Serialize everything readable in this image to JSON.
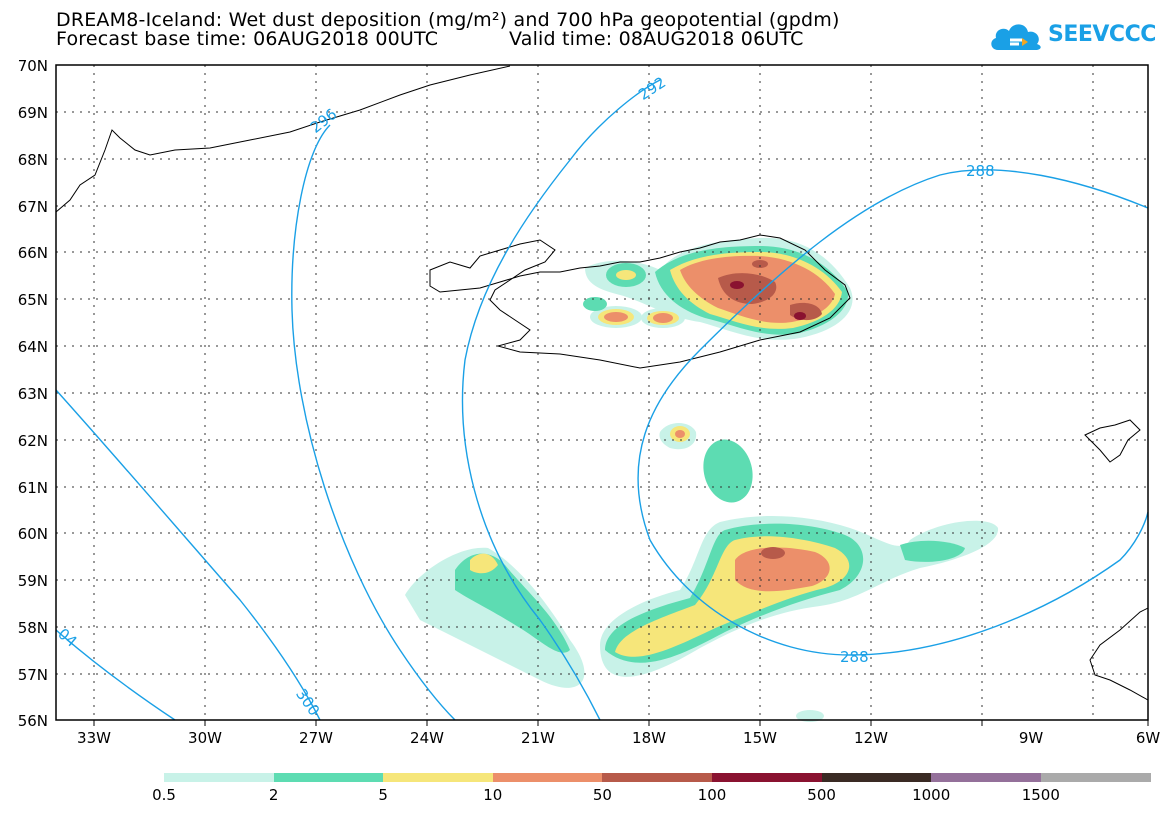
{
  "title": {
    "line1": "DREAM8-Iceland: Wet dust deposition (mg/m²) and 700 hPa geopotential (gpdm)",
    "base_time": "Forecast base time: 06AUG2018 00UTC",
    "valid_time": "Valid time: 08AUG2018 06UTC"
  },
  "logo": {
    "text": "SEEVCCC"
  },
  "axes": {
    "lat_labels": [
      "70N",
      "69N",
      "68N",
      "67N",
      "66N",
      "65N",
      "64N",
      "63N",
      "62N",
      "61N",
      "60N",
      "59N",
      "58N",
      "57N",
      "56N"
    ],
    "lon_labels": [
      "33W",
      "30W",
      "27W",
      "24W",
      "21W",
      "18W",
      "15W",
      "12W",
      "9W",
      "6W"
    ]
  },
  "contours": {
    "labels": [
      "296",
      "292",
      "288",
      "288",
      "300",
      "04"
    ]
  },
  "legend": {
    "colors": [
      "#c8f2e8",
      "#5ddcb2",
      "#f6e67a",
      "#ec8f6a",
      "#b75a4a",
      "#8a1230",
      "#3a2a24",
      "#94709a",
      "#aaaaaa"
    ],
    "labels": [
      "0.5",
      "2",
      "5",
      "10",
      "50",
      "100",
      "500",
      "1000",
      "1500"
    ]
  }
}
